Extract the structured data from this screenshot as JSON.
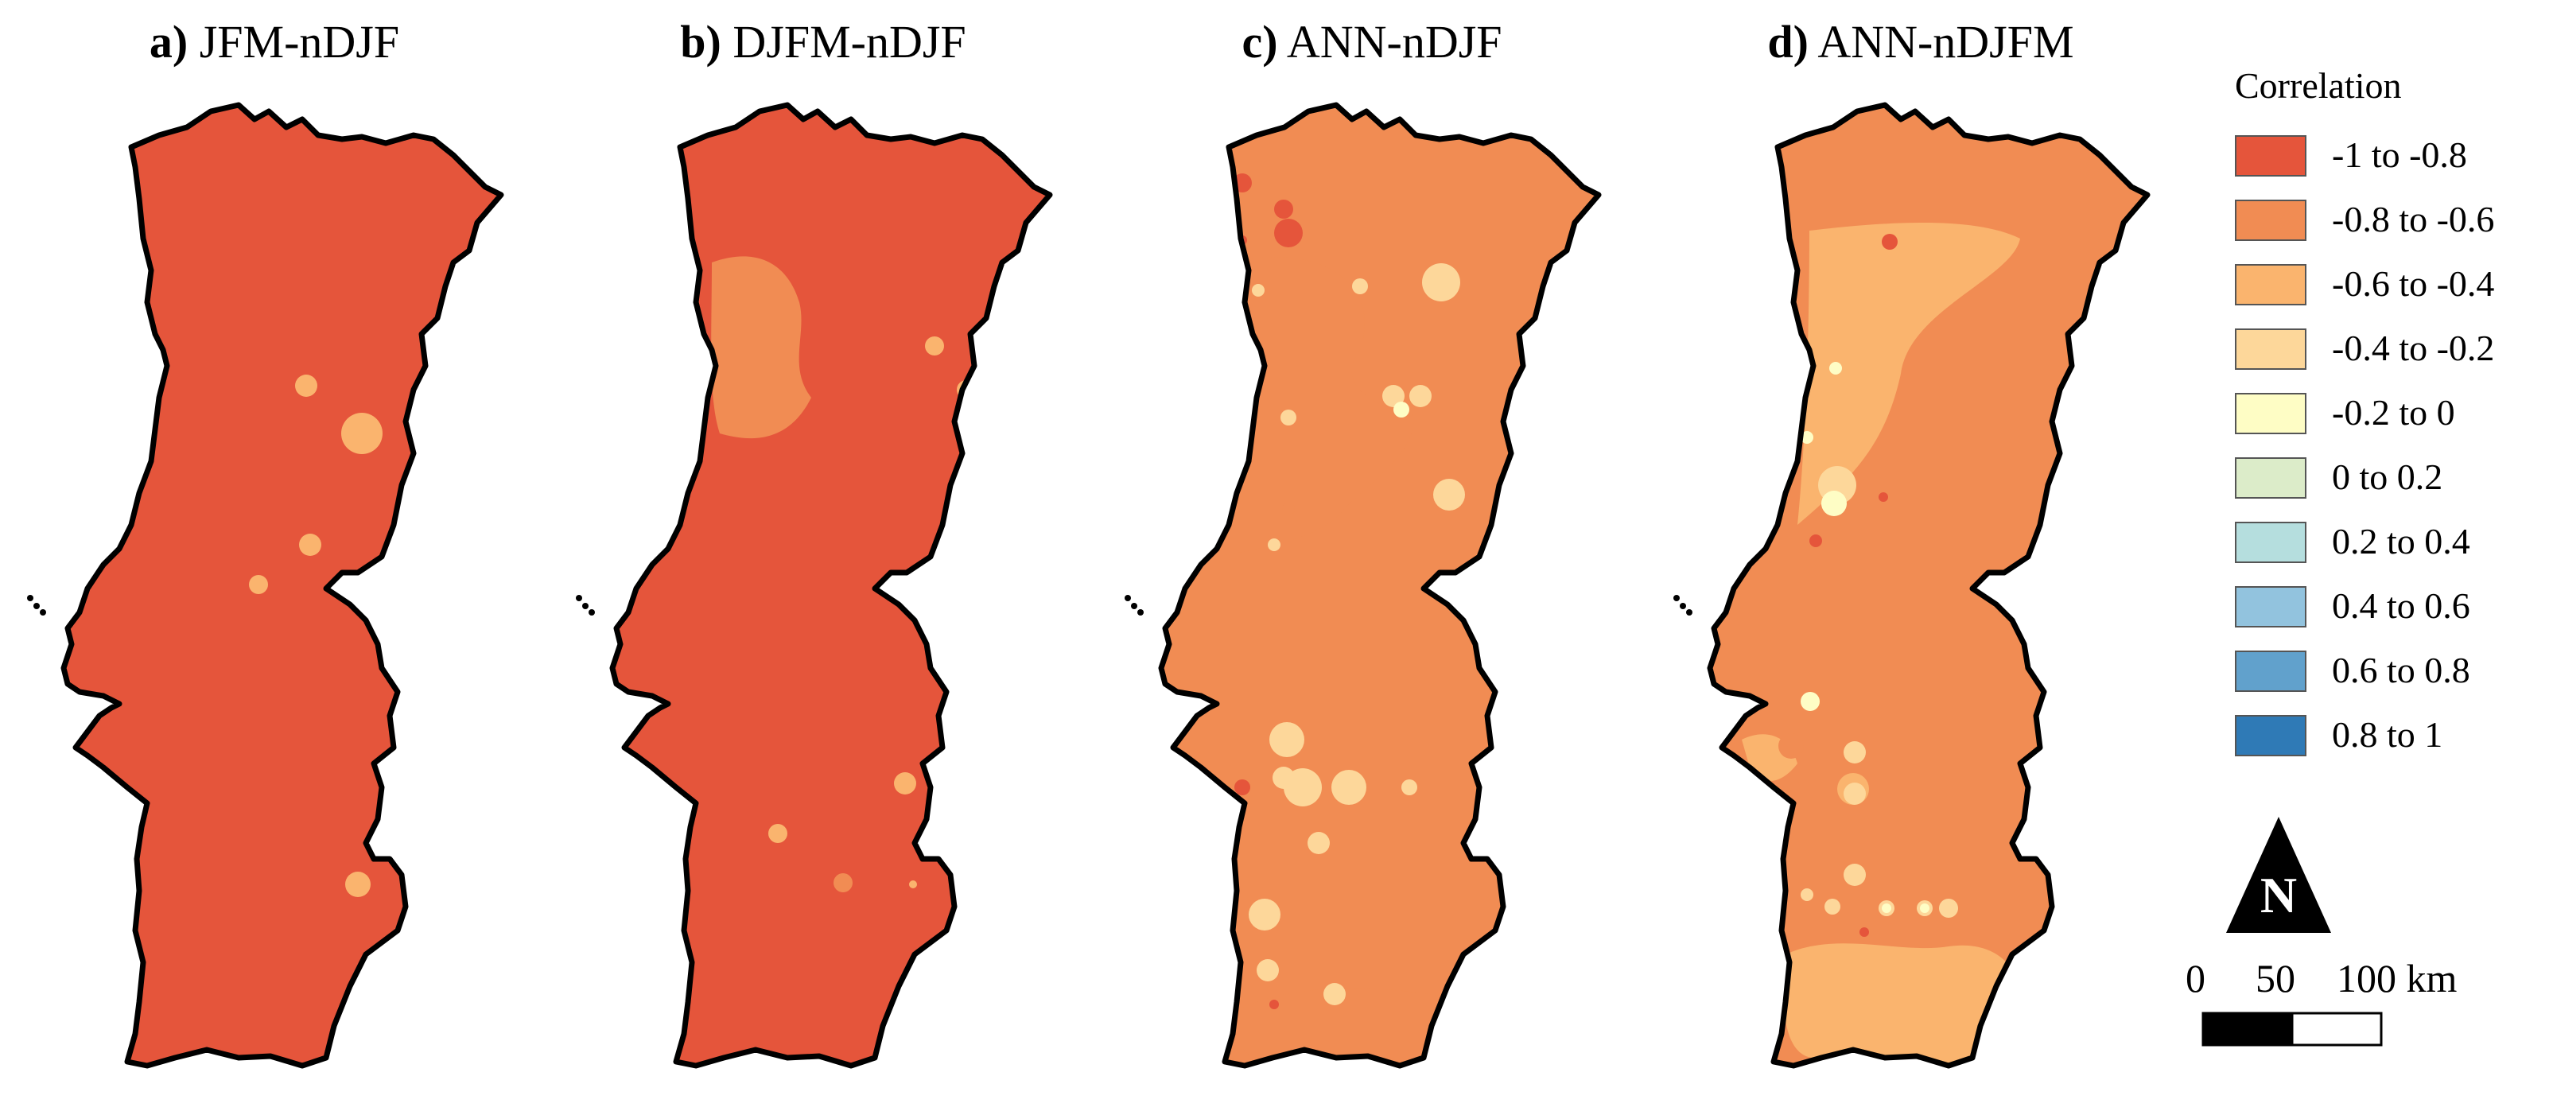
{
  "panels": [
    {
      "label": "a)",
      "title": "JFM-nDJF",
      "base_class": "-1 to -0.8"
    },
    {
      "label": "b)",
      "title": "DJFM-nDJF",
      "base_class": "-1 to -0.8"
    },
    {
      "label": "c)",
      "title": "ANN-nDJF",
      "base_class": "-0.8 to -0.6"
    },
    {
      "label": "d)",
      "title": "ANN-nDJFM",
      "base_class": "-0.8 to -0.6"
    }
  ],
  "legend": {
    "title": "Correlation",
    "items": [
      {
        "label": "-1 to -0.8",
        "color": "#e5553b"
      },
      {
        "label": "-0.8 to -0.6",
        "color": "#f18c53"
      },
      {
        "label": "-0.6 to -0.4",
        "color": "#fab46e"
      },
      {
        "label": "-0.4 to -0.2",
        "color": "#fdd79a"
      },
      {
        "label": "-0.2 to 0",
        "color": "#fefdc5"
      },
      {
        "label": "0 to 0.2",
        "color": "#dcecc9"
      },
      {
        "label": "0.2 to 0.4",
        "color": "#b5dede"
      },
      {
        "label": "0.4 to 0.6",
        "color": "#92c3de"
      },
      {
        "label": "0.6 to 0.8",
        "color": "#61a1cc"
      },
      {
        "label": "0.8 to 1",
        "color": "#2f7ab6"
      }
    ]
  },
  "north_arrow": {
    "label": "N",
    "icon": "north-arrow-icon"
  },
  "scale_bar": {
    "tick_0": "0",
    "tick_50": "50",
    "tick_100": "100 km"
  }
}
